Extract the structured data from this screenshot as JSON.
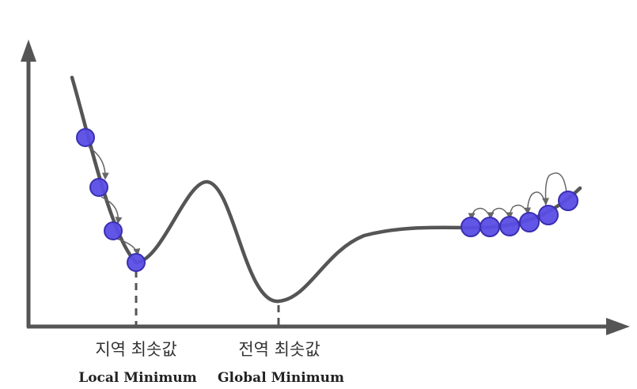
{
  "labels": {
    "local_ko": "지역 최솟값",
    "local_en": "Local Minimum",
    "global_ko": "전역 최솟값",
    "global_en": "Global Minimum"
  },
  "colors": {
    "curve": "#555555",
    "axis": "#555555",
    "ball_fill": "#5a4de6",
    "ball_stroke": "#3a2fb0",
    "arrow": "#666666"
  }
}
